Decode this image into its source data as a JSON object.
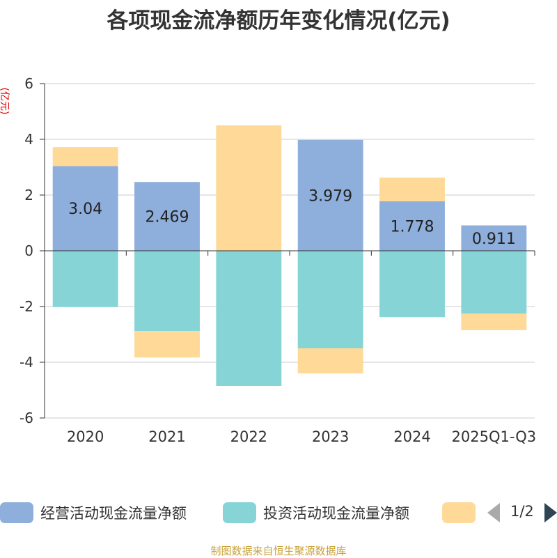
{
  "title": "各项现金流净额历年变化情况(亿元)",
  "source": "制图数据来自恒生聚源数据库",
  "pager": {
    "text": "1/2"
  },
  "chart_data": {
    "type": "bar",
    "stacked": true,
    "title": "各项现金流净额历年变化情况(亿元)",
    "ylabel": "(亿元)",
    "ylim": [
      -6,
      6
    ],
    "yticks": [
      6,
      4,
      2,
      0,
      -2,
      -4,
      -6
    ],
    "grid": true,
    "legend_position": "bottom",
    "categories": [
      "2020",
      "2021",
      "2022",
      "2023",
      "2024",
      "2025Q1-Q3"
    ],
    "series": [
      {
        "name": "经营活动现金流量净额",
        "color": "#8eaedb",
        "values": [
          3.04,
          2.469,
          0.001,
          3.979,
          1.778,
          0.911
        ],
        "labels": [
          "3.04",
          "2.469",
          "",
          "3.979",
          "1.778",
          "0.911"
        ]
      },
      {
        "name": "投资活动现金流量净额",
        "color": "#86d4d6",
        "values": [
          -2.02,
          -2.88,
          -4.85,
          -3.5,
          -2.38,
          -2.25
        ]
      },
      {
        "name": "",
        "color": "#fed998",
        "values": [
          0.68,
          -0.95,
          4.5,
          -0.9,
          0.85,
          -0.6
        ]
      }
    ]
  }
}
